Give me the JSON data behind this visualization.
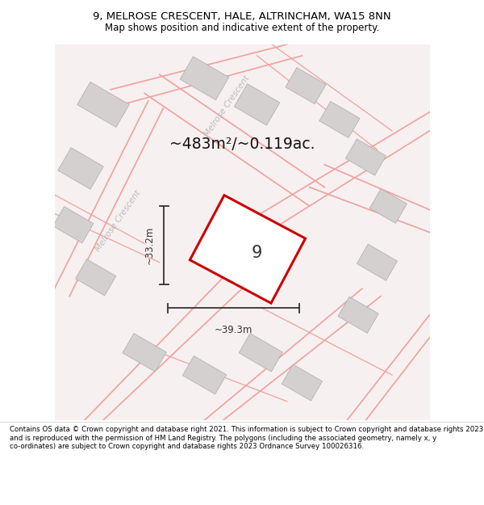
{
  "title_line1": "9, MELROSE CRESCENT, HALE, ALTRINCHAM, WA15 8NN",
  "title_line2": "Map shows position and indicative extent of the property.",
  "footer_text": "Contains OS data © Crown copyright and database right 2021. This information is subject to Crown copyright and database rights 2023 and is reproduced with the permission of HM Land Registry. The polygons (including the associated geometry, namely x, y co-ordinates) are subject to Crown copyright and database rights 2023 Ordnance Survey 100026316.",
  "area_label": "~483m²/~0.119ac.",
  "plot_number": "9",
  "dim_height": "~33.2m",
  "dim_width": "~39.3m",
  "road_label1": "Melrose Crescent",
  "road_label2": "Melrose Crescent",
  "map_bg": "#f8f3f3",
  "plot_color": "#cc0000",
  "building_color": "#d4d0d0",
  "road_color": "#f0a0a0"
}
